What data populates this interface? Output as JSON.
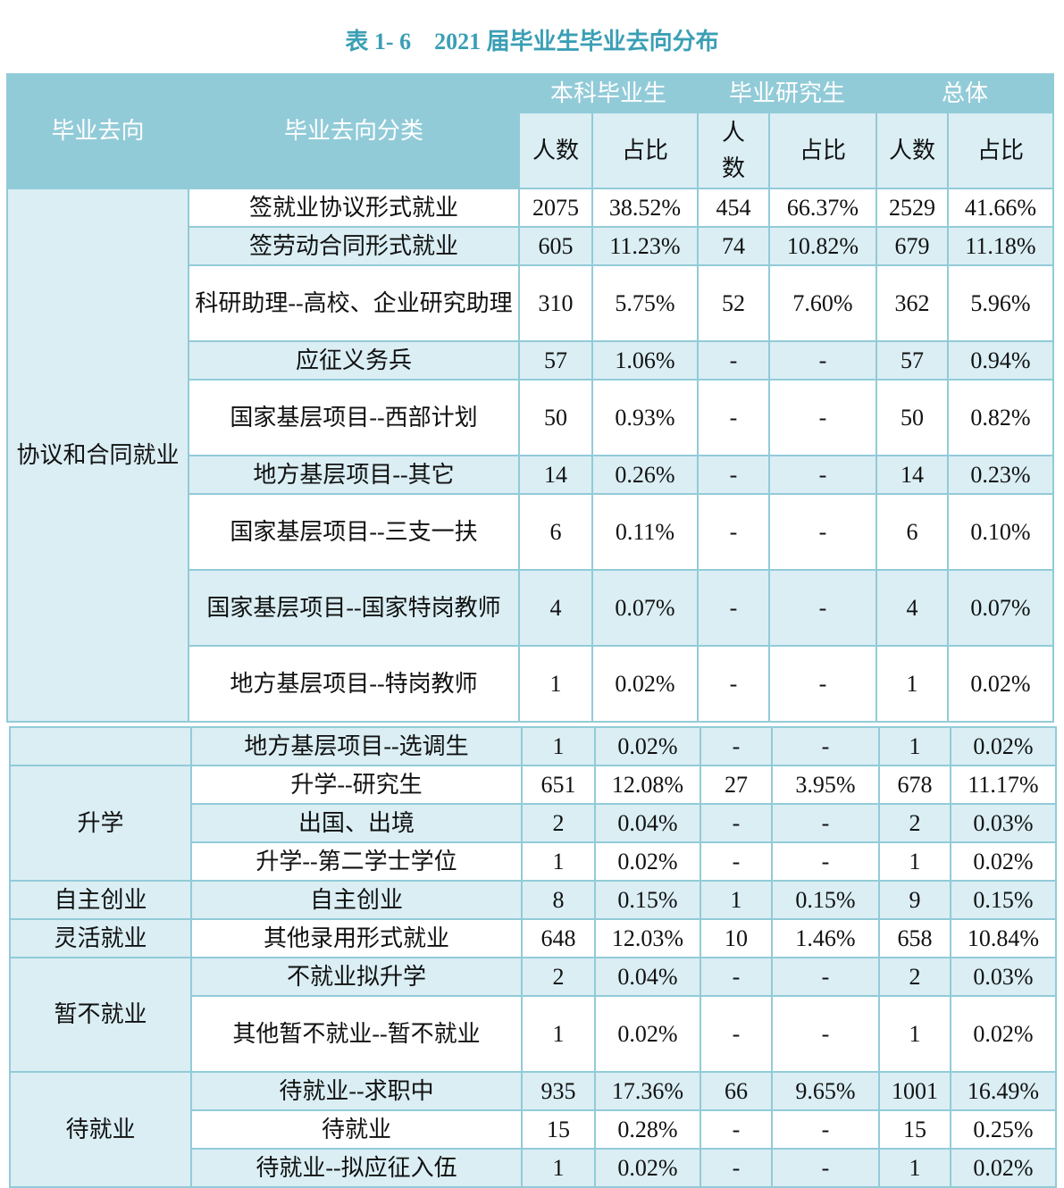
{
  "title": "表 1- 6　2021 届毕业生毕业去向分布",
  "colors": {
    "header": "#92cbd8",
    "light": "#daeef4",
    "title": "#3a9fb5"
  },
  "headers": {
    "direction": "毕业去向",
    "category": "毕业去向分类",
    "groups": [
      "本科毕业生",
      "毕业研究生",
      "总体"
    ],
    "sub": [
      "人数",
      "占比",
      "人\n数",
      "占比",
      "人数",
      "占比"
    ]
  },
  "table1": [
    {
      "group": "协议和合同就业",
      "span": 9,
      "rows": [
        [
          "签就业协议形式就业",
          "2075",
          "38.52%",
          "454",
          "66.37%",
          "2529",
          "41.66%"
        ],
        [
          "签劳动合同形式就业",
          "605",
          "11.23%",
          "74",
          "10.82%",
          "679",
          "11.18%"
        ],
        [
          "科研助理--高校、企业研究助理",
          "310",
          "5.75%",
          "52",
          "7.60%",
          "362",
          "5.96%"
        ],
        [
          "应征义务兵",
          "57",
          "1.06%",
          "-",
          "-",
          "57",
          "0.94%"
        ],
        [
          "国家基层项目--西部计划",
          "50",
          "0.93%",
          "-",
          "-",
          "50",
          "0.82%"
        ],
        [
          "地方基层项目--其它",
          "14",
          "0.26%",
          "-",
          "-",
          "14",
          "0.23%"
        ],
        [
          "国家基层项目--三支一扶",
          "6",
          "0.11%",
          "-",
          "-",
          "6",
          "0.10%"
        ],
        [
          "国家基层项目--国家特岗教师",
          "4",
          "0.07%",
          "-",
          "-",
          "4",
          "0.07%"
        ],
        [
          "地方基层项目--特岗教师",
          "1",
          "0.02%",
          "-",
          "-",
          "1",
          "0.02%"
        ]
      ]
    }
  ],
  "table2": [
    {
      "group": "",
      "rows": [
        [
          "地方基层项目--选调生",
          "1",
          "0.02%",
          "-",
          "-",
          "1",
          "0.02%"
        ]
      ]
    },
    {
      "group": "升学",
      "rows": [
        [
          "升学--研究生",
          "651",
          "12.08%",
          "27",
          "3.95%",
          "678",
          "11.17%"
        ],
        [
          "出国、出境",
          "2",
          "0.04%",
          "-",
          "-",
          "2",
          "0.03%"
        ],
        [
          "升学--第二学士学位",
          "1",
          "0.02%",
          "-",
          "-",
          "1",
          "0.02%"
        ]
      ]
    },
    {
      "group": "自主创业",
      "rows": [
        [
          "自主创业",
          "8",
          "0.15%",
          "1",
          "0.15%",
          "9",
          "0.15%"
        ]
      ]
    },
    {
      "group": "灵活就业",
      "rows": [
        [
          "其他录用形式就业",
          "648",
          "12.03%",
          "10",
          "1.46%",
          "658",
          "10.84%"
        ]
      ]
    },
    {
      "group": "暂不就业",
      "rows": [
        [
          "不就业拟升学",
          "2",
          "0.04%",
          "-",
          "-",
          "2",
          "0.03%"
        ],
        [
          "其他暂不就业--暂不就业",
          "1",
          "0.02%",
          "-",
          "-",
          "1",
          "0.02%"
        ]
      ]
    },
    {
      "group": "待就业",
      "rows": [
        [
          "待就业--求职中",
          "935",
          "17.36%",
          "66",
          "9.65%",
          "1001",
          "16.49%"
        ],
        [
          "待就业",
          "15",
          "0.28%",
          "-",
          "-",
          "15",
          "0.25%"
        ],
        [
          "待就业--拟应征入伍",
          "1",
          "0.02%",
          "-",
          "-",
          "1",
          "0.02%"
        ]
      ]
    }
  ]
}
